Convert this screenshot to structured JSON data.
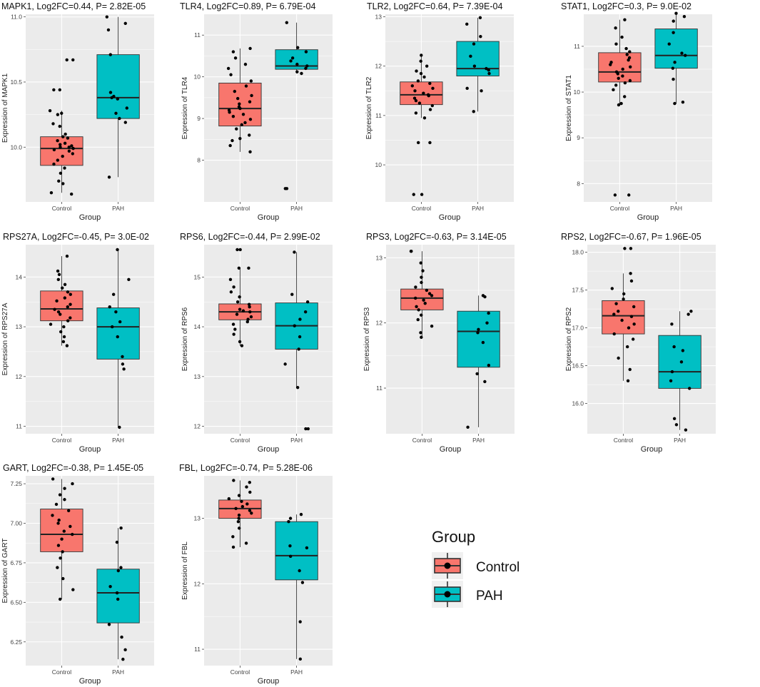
{
  "colors": {
    "control": "#F8766D",
    "pah": "#00BFC4",
    "panel_bg": "#EBEBEB",
    "grid": "#FFFFFF"
  },
  "legend": {
    "title": "Group",
    "items": [
      {
        "label": "Control",
        "color": "#F8766D"
      },
      {
        "label": "PAH",
        "color": "#00BFC4"
      }
    ]
  },
  "chart_data": [
    {
      "type": "box",
      "gene": "MAPK1",
      "title": "MAPK1, Log2FC=0.44, P= 2.82E-05",
      "ylabel": "Expression of MAPK1",
      "xlabel": "Group",
      "categories": [
        "Control",
        "PAH"
      ],
      "ylim": [
        9.58,
        11.02
      ],
      "yticks": [
        10.0,
        10.5,
        11.0
      ],
      "ytick_labels": [
        "10.0",
        "10.5",
        "11.0"
      ],
      "boxes": [
        {
          "group": "Control",
          "min": 9.65,
          "q1": 9.86,
          "median": 9.99,
          "q3": 10.08,
          "max": 10.28,
          "points": [
            9.64,
            9.65,
            9.72,
            9.74,
            9.8,
            9.84,
            9.87,
            9.9,
            9.93,
            9.95,
            9.97,
            9.98,
            9.99,
            10.0,
            10.0,
            10.01,
            10.02,
            10.03,
            10.05,
            10.07,
            10.08,
            10.1,
            10.16,
            10.18,
            10.25,
            10.26,
            10.28,
            10.44,
            10.44,
            10.67,
            10.67
          ]
        },
        {
          "group": "PAH",
          "min": 9.77,
          "q1": 10.22,
          "median": 10.38,
          "q3": 10.71,
          "max": 11.0,
          "points": [
            9.77,
            10.19,
            10.22,
            10.26,
            10.3,
            10.37,
            10.38,
            10.39,
            10.42,
            10.71,
            10.9,
            10.95,
            11.0
          ]
        }
      ]
    },
    {
      "type": "box",
      "gene": "TLR4",
      "title": "TLR4, Log2FC=0.89, P= 6.79E-04",
      "ylabel": "Expression of TLR4",
      "xlabel": "Group",
      "categories": [
        "Control",
        "PAH"
      ],
      "ylim": [
        7.0,
        11.5
      ],
      "yticks": [
        8,
        9,
        10,
        11
      ],
      "ytick_labels": [
        "8",
        "9",
        "10",
        "11"
      ],
      "boxes": [
        {
          "group": "Control",
          "min": 8.2,
          "q1": 8.82,
          "median": 9.24,
          "q3": 9.85,
          "max": 10.68,
          "points": [
            8.2,
            8.35,
            8.47,
            8.52,
            8.6,
            8.75,
            8.85,
            8.9,
            8.98,
            9.05,
            9.1,
            9.15,
            9.2,
            9.24,
            9.28,
            9.35,
            9.4,
            9.48,
            9.55,
            9.65,
            9.78,
            9.9,
            10.05,
            10.2,
            10.3,
            10.45,
            10.6,
            10.68
          ]
        },
        {
          "group": "PAH",
          "min": 10.08,
          "q1": 10.18,
          "median": 10.26,
          "q3": 10.65,
          "max": 11.3,
          "points": [
            7.32,
            7.32,
            10.08,
            10.12,
            10.2,
            10.26,
            10.3,
            10.38,
            10.45,
            10.6,
            10.7,
            11.3
          ]
        }
      ]
    },
    {
      "type": "box",
      "gene": "TLR2",
      "title": "TLR2, Log2FC=0.64, P= 7.39E-04",
      "ylabel": "Expression of TLR2",
      "xlabel": "Group",
      "categories": [
        "Control",
        "PAH"
      ],
      "ylim": [
        9.25,
        13.05
      ],
      "yticks": [
        10,
        11,
        12,
        13
      ],
      "ytick_labels": [
        "10",
        "11",
        "12",
        "13"
      ],
      "boxes": [
        {
          "group": "Control",
          "min": 10.95,
          "q1": 11.22,
          "median": 11.42,
          "q3": 11.68,
          "max": 12.22,
          "points": [
            9.4,
            9.4,
            10.45,
            10.45,
            10.95,
            11.05,
            11.12,
            11.2,
            11.25,
            11.3,
            11.35,
            11.4,
            11.42,
            11.45,
            11.5,
            11.55,
            11.6,
            11.65,
            11.7,
            11.78,
            11.85,
            11.9,
            12.0,
            12.1,
            12.22
          ]
        },
        {
          "group": "PAH",
          "min": 11.08,
          "q1": 11.8,
          "median": 11.95,
          "q3": 12.5,
          "max": 12.98,
          "points": [
            11.08,
            11.5,
            11.55,
            11.85,
            11.92,
            11.95,
            12.0,
            12.2,
            12.45,
            12.6,
            12.85,
            12.98
          ]
        }
      ]
    },
    {
      "type": "box",
      "gene": "STAT1",
      "title": "STAT1, Log2FC=0.3, P= 9.0E-02",
      "ylabel": "Expression of STAT1",
      "xlabel": "Group",
      "categories": [
        "Control",
        "PAH"
      ],
      "ylim": [
        7.6,
        11.7
      ],
      "yticks": [
        8,
        9,
        10,
        11
      ],
      "ytick_labels": [
        "8",
        "9",
        "10",
        "11"
      ],
      "boxes": [
        {
          "group": "Control",
          "min": 9.72,
          "q1": 10.22,
          "median": 10.44,
          "q3": 10.86,
          "max": 11.58,
          "points": [
            7.75,
            7.75,
            9.72,
            9.75,
            9.9,
            10.05,
            10.15,
            10.2,
            10.25,
            10.3,
            10.35,
            10.4,
            10.44,
            10.5,
            10.55,
            10.6,
            10.65,
            10.7,
            10.75,
            10.82,
            10.88,
            10.95,
            11.05,
            11.2,
            11.4,
            11.58
          ]
        },
        {
          "group": "PAH",
          "min": 9.75,
          "q1": 10.52,
          "median": 10.8,
          "q3": 11.38,
          "max": 11.72,
          "points": [
            9.75,
            9.78,
            10.28,
            10.52,
            10.65,
            10.8,
            10.85,
            11.05,
            11.3,
            11.55,
            11.65,
            11.72
          ]
        }
      ]
    },
    {
      "type": "box",
      "gene": "RPS27A",
      "title": "RPS27A, Log2FC=-0.45, P= 3.0E-02",
      "ylabel": "Expression of RPS27A",
      "xlabel": "Group",
      "categories": [
        "Control",
        "PAH"
      ],
      "ylim": [
        10.85,
        14.65
      ],
      "yticks": [
        11,
        12,
        13,
        14
      ],
      "ytick_labels": [
        "11",
        "12",
        "13",
        "14"
      ],
      "boxes": [
        {
          "group": "Control",
          "min": 12.62,
          "q1": 13.12,
          "median": 13.36,
          "q3": 13.72,
          "max": 14.42,
          "points": [
            12.62,
            12.7,
            12.8,
            12.9,
            13.0,
            13.05,
            13.12,
            13.18,
            13.25,
            13.3,
            13.35,
            13.4,
            13.45,
            13.52,
            13.58,
            13.65,
            13.7,
            13.78,
            13.85,
            13.95,
            14.05,
            14.12,
            14.42
          ]
        },
        {
          "group": "PAH",
          "min": 10.98,
          "q1": 12.35,
          "median": 13.0,
          "q3": 13.38,
          "max": 14.55,
          "points": [
            10.98,
            12.15,
            12.25,
            12.4,
            12.8,
            13.0,
            13.1,
            13.3,
            13.4,
            13.65,
            13.95,
            14.55
          ]
        }
      ]
    },
    {
      "type": "box",
      "gene": "RPS6",
      "title": "RPS6, Log2FC=-0.44, P= 2.99E-02",
      "ylabel": "Expression of RPS6",
      "xlabel": "Group",
      "categories": [
        "Control",
        "PAH"
      ],
      "ylim": [
        11.85,
        15.65
      ],
      "yticks": [
        12,
        13,
        14,
        15
      ],
      "ytick_labels": [
        "12",
        "13",
        "14",
        "15"
      ],
      "boxes": [
        {
          "group": "Control",
          "min": 13.62,
          "q1": 14.14,
          "median": 14.3,
          "q3": 14.46,
          "max": 15.18,
          "points": [
            13.62,
            13.7,
            13.85,
            13.95,
            14.05,
            14.1,
            14.15,
            14.2,
            14.25,
            14.3,
            14.32,
            14.35,
            14.4,
            14.45,
            14.5,
            14.6,
            14.7,
            14.8,
            14.95,
            15.18,
            15.18,
            15.55,
            15.55
          ]
        },
        {
          "group": "PAH",
          "min": 12.78,
          "q1": 13.55,
          "median": 14.02,
          "q3": 14.48,
          "max": 15.5,
          "points": [
            11.95,
            11.95,
            12.78,
            13.25,
            13.55,
            13.8,
            14.02,
            14.15,
            14.3,
            14.5,
            14.65,
            15.5
          ]
        }
      ]
    },
    {
      "type": "box",
      "gene": "RPS3",
      "title": "RPS3, Log2FC=-0.63, P= 3.14E-05",
      "ylabel": "Expression of RPS3",
      "xlabel": "Group",
      "categories": [
        "Control",
        "PAH"
      ],
      "ylim": [
        10.3,
        13.2
      ],
      "yticks": [
        11,
        12,
        13
      ],
      "ytick_labels": [
        "11",
        "12",
        "13"
      ],
      "boxes": [
        {
          "group": "Control",
          "min": 11.78,
          "q1": 12.2,
          "median": 12.38,
          "q3": 12.52,
          "max": 13.1,
          "points": [
            11.78,
            11.85,
            11.95,
            12.05,
            12.12,
            12.2,
            12.25,
            12.3,
            12.35,
            12.38,
            12.42,
            12.45,
            12.5,
            12.55,
            12.62,
            12.7,
            12.8,
            12.92,
            13.1,
            13.1
          ]
        },
        {
          "group": "PAH",
          "min": 10.4,
          "q1": 11.32,
          "median": 11.87,
          "q3": 12.18,
          "max": 12.42,
          "points": [
            10.4,
            11.1,
            11.22,
            11.35,
            11.7,
            11.85,
            11.9,
            12.0,
            12.15,
            12.4,
            12.42
          ]
        }
      ]
    },
    {
      "type": "box",
      "gene": "RPS2",
      "title": "RPS2, Log2FC=-0.67, P= 1.96E-05",
      "ylabel": "Expression of RPS2",
      "xlabel": "Group",
      "categories": [
        "Control",
        "PAH"
      ],
      "ylim": [
        15.6,
        18.1
      ],
      "yticks": [
        16.0,
        16.5,
        17.0,
        17.5,
        18.0
      ],
      "ytick_labels": [
        "16.0",
        "16.5",
        "17.0",
        "17.5",
        "18.0"
      ],
      "boxes": [
        {
          "group": "Control",
          "min": 16.3,
          "q1": 16.92,
          "median": 17.16,
          "q3": 17.36,
          "max": 17.72,
          "points": [
            16.3,
            16.45,
            16.6,
            16.75,
            16.85,
            16.92,
            17.0,
            17.05,
            17.1,
            17.15,
            17.18,
            17.22,
            17.28,
            17.32,
            17.38,
            17.45,
            17.52,
            17.62,
            17.72,
            18.05,
            18.05
          ]
        },
        {
          "group": "PAH",
          "min": 15.65,
          "q1": 16.2,
          "median": 16.42,
          "q3": 16.9,
          "max": 17.22,
          "points": [
            15.65,
            15.72,
            15.8,
            16.2,
            16.3,
            16.42,
            16.55,
            16.7,
            16.75,
            17.05,
            17.18,
            17.22
          ]
        }
      ]
    },
    {
      "type": "box",
      "gene": "GART",
      "title": "GART, Log2FC=-0.38, P= 1.45E-05",
      "ylabel": "Expression of GART",
      "xlabel": "Group",
      "categories": [
        "Control",
        "PAH"
      ],
      "ylim": [
        6.1,
        7.3
      ],
      "yticks": [
        6.25,
        6.5,
        6.75,
        7.0,
        7.25
      ],
      "ytick_labels": [
        "6.25",
        "6.50",
        "6.75",
        "7.00",
        "7.25"
      ],
      "boxes": [
        {
          "group": "Control",
          "min": 6.52,
          "q1": 6.82,
          "median": 6.93,
          "q3": 7.09,
          "max": 7.28,
          "points": [
            6.52,
            6.58,
            6.65,
            6.72,
            6.78,
            6.82,
            6.86,
            6.9,
            6.93,
            6.95,
            6.98,
            7.0,
            7.02,
            7.05,
            7.08,
            7.12,
            7.15,
            7.18,
            7.22,
            7.25,
            7.28
          ]
        },
        {
          "group": "PAH",
          "min": 6.14,
          "q1": 6.37,
          "median": 6.56,
          "q3": 6.71,
          "max": 6.97,
          "points": [
            6.14,
            6.2,
            6.28,
            6.36,
            6.52,
            6.56,
            6.6,
            6.7,
            6.72,
            6.88,
            6.97
          ]
        }
      ]
    },
    {
      "type": "box",
      "gene": "FBL",
      "title": "FBL, Log2FC=-0.74, P= 5.28E-06",
      "ylabel": "Expression of FBL",
      "xlabel": "Group",
      "categories": [
        "Control",
        "PAH"
      ],
      "ylim": [
        10.75,
        13.65
      ],
      "yticks": [
        11,
        12,
        13
      ],
      "ytick_labels": [
        "11",
        "12",
        "13"
      ],
      "boxes": [
        {
          "group": "Control",
          "min": 12.56,
          "q1": 13.0,
          "median": 13.15,
          "q3": 13.28,
          "max": 13.58,
          "points": [
            12.56,
            12.62,
            12.72,
            12.85,
            12.95,
            13.0,
            13.05,
            13.08,
            13.12,
            13.15,
            13.18,
            13.22,
            13.26,
            13.3,
            13.35,
            13.4,
            13.48,
            13.55,
            13.58
          ]
        },
        {
          "group": "PAH",
          "min": 10.85,
          "q1": 12.06,
          "median": 12.43,
          "q3": 12.95,
          "max": 13.06,
          "points": [
            10.85,
            11.42,
            12.02,
            12.2,
            12.42,
            12.55,
            12.58,
            12.95,
            13.0,
            13.06
          ]
        }
      ]
    }
  ]
}
